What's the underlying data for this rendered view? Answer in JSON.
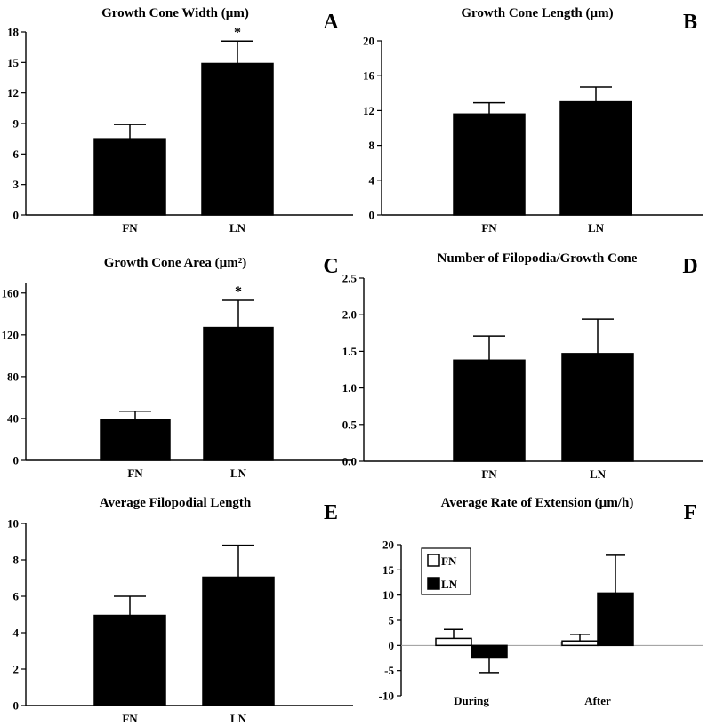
{
  "chart_data": [
    {
      "panel": "A",
      "type": "bar",
      "title": "Growth Cone Width (µm)",
      "categories": [
        "FN",
        "LN"
      ],
      "series": [
        {
          "values": [
            7.5,
            14.9
          ],
          "errors": [
            1.4,
            2.2
          ]
        }
      ],
      "annotations": [
        "",
        "*"
      ],
      "yticks": [
        "0",
        "3",
        "6",
        "9",
        "12",
        "15",
        "18"
      ],
      "ylim": [
        0,
        18
      ]
    },
    {
      "panel": "B",
      "type": "bar",
      "title": "Growth Cone Length (µm)",
      "categories": [
        "FN",
        "LN"
      ],
      "series": [
        {
          "values": [
            11.6,
            13.0
          ],
          "errors": [
            1.3,
            1.7
          ]
        }
      ],
      "annotations": [
        "",
        ""
      ],
      "yticks": [
        "0",
        "4",
        "8",
        "12",
        "16",
        "20"
      ],
      "ylim": [
        0,
        20
      ]
    },
    {
      "panel": "C",
      "type": "bar",
      "title": "Growth Cone Area (µm²)",
      "categories": [
        "FN",
        "LN"
      ],
      "series": [
        {
          "values": [
            39,
            127
          ],
          "errors": [
            8,
            26
          ]
        }
      ],
      "annotations": [
        "",
        "*"
      ],
      "yticks": [
        "0",
        "40",
        "80",
        "120",
        "160"
      ],
      "ylim": [
        0,
        170
      ]
    },
    {
      "panel": "D",
      "type": "bar",
      "title": "Number of Filopodia/Growth Cone",
      "categories": [
        "FN",
        "LN"
      ],
      "series": [
        {
          "values": [
            1.38,
            1.47
          ],
          "errors": [
            0.33,
            0.47
          ]
        }
      ],
      "annotations": [
        "",
        ""
      ],
      "yticks": [
        "0.0",
        "0.5",
        "1.0",
        "1.5",
        "2.0",
        "2.5"
      ],
      "ylim": [
        0,
        2.5
      ]
    },
    {
      "panel": "E",
      "type": "bar",
      "title": "Average Filopodial Length",
      "categories": [
        "FN",
        "LN"
      ],
      "series": [
        {
          "values": [
            4.95,
            7.05
          ],
          "errors": [
            1.05,
            1.75
          ]
        }
      ],
      "annotations": [
        "",
        ""
      ],
      "yticks": [
        "0",
        "2",
        "4",
        "6",
        "8",
        "10"
      ],
      "ylim": [
        0,
        10
      ]
    },
    {
      "panel": "F",
      "type": "bar",
      "title": "Average Rate of Extension (µm/h)",
      "categories": [
        "During",
        "After"
      ],
      "series": [
        {
          "name": "FN",
          "values": [
            1.4,
            0.9
          ],
          "errors": [
            1.8,
            1.3
          ],
          "color": "#ffffff"
        },
        {
          "name": "LN",
          "values": [
            -2.5,
            10.4
          ],
          "errors": [
            2.9,
            7.5
          ],
          "color": "#000000"
        }
      ],
      "annotations": [
        "",
        ""
      ],
      "yticks": [
        "-10",
        "-5",
        "0",
        "5",
        "10",
        "15",
        "20"
      ],
      "ylim": [
        -10,
        20
      ],
      "legend": "top-left"
    }
  ]
}
